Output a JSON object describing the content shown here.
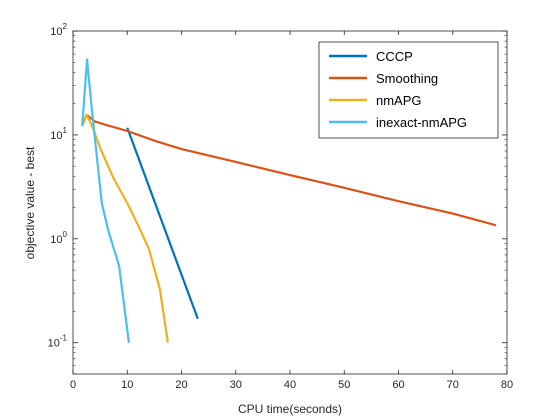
{
  "chart_data": {
    "type": "line",
    "title": "",
    "xlabel": "CPU time(seconds)",
    "ylabel": "objective value - best",
    "xlim": [
      0,
      80
    ],
    "ylim": [
      0.05,
      100
    ],
    "yscale": "log",
    "xticks": [
      0,
      10,
      20,
      30,
      40,
      50,
      60,
      70,
      80
    ],
    "xtick_labels": [
      "0",
      "10",
      "20",
      "30",
      "40",
      "50",
      "60",
      "70",
      "80"
    ],
    "yticks": [
      0.1,
      1,
      10,
      100
    ],
    "ytick_labels": [
      {
        "base": "10",
        "exp": "-1"
      },
      {
        "base": "10",
        "exp": "0"
      },
      {
        "base": "10",
        "exp": "1"
      },
      {
        "base": "10",
        "exp": "2"
      }
    ],
    "grid": false,
    "legend_position": "top-right",
    "series": [
      {
        "name": "CCCP",
        "color": "#0072BD",
        "points": [
          [
            10,
            11.7
          ],
          [
            23,
            0.17
          ]
        ]
      },
      {
        "name": "Smoothing",
        "color": "#D95319",
        "points": [
          [
            1.7,
            12.2
          ],
          [
            2.5,
            15.6
          ],
          [
            4,
            13.5
          ],
          [
            6,
            12.5
          ],
          [
            10,
            10.9
          ],
          [
            15,
            8.8
          ],
          [
            20,
            7.3
          ],
          [
            30,
            5.5
          ],
          [
            40,
            4.1
          ],
          [
            50,
            3.1
          ],
          [
            60,
            2.3
          ],
          [
            70,
            1.75
          ],
          [
            78,
            1.35
          ]
        ]
      },
      {
        "name": "nmAPG",
        "color": "#EDB120",
        "points": [
          [
            1.7,
            12.2
          ],
          [
            2.5,
            15.6
          ],
          [
            3.5,
            12.3
          ],
          [
            5,
            7.5
          ],
          [
            7.5,
            3.8
          ],
          [
            10,
            2.2
          ],
          [
            12,
            1.35
          ],
          [
            14,
            0.8
          ],
          [
            16,
            0.33
          ],
          [
            17.5,
            0.1
          ]
        ]
      },
      {
        "name": "inexact-nmAPG",
        "color": "#4DBEEE",
        "points": [
          [
            1.7,
            12.2
          ],
          [
            2.6,
            53
          ],
          [
            3.5,
            17
          ],
          [
            4.5,
            5.5
          ],
          [
            5.3,
            2.2
          ],
          [
            6.5,
            1.2
          ],
          [
            8.5,
            0.55
          ],
          [
            10.3,
            0.1
          ]
        ]
      }
    ]
  }
}
